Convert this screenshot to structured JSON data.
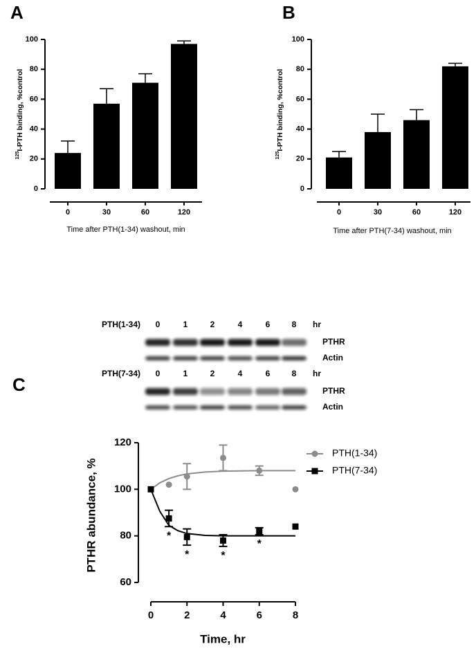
{
  "chart_data": [
    {
      "type": "bar",
      "panel": "A",
      "ylabel_sup": "125",
      "ylabel": "I-PTH binding, %control",
      "xlabel": "Time after PTH(1-34) washout, min",
      "categories": [
        "0",
        "30",
        "60",
        "120"
      ],
      "values": [
        24,
        57,
        71,
        97
      ],
      "errors": [
        8,
        10,
        6,
        2
      ],
      "color": "#000000",
      "ylim": [
        0,
        100
      ],
      "yticks": [
        0,
        20,
        40,
        60,
        80,
        100
      ]
    },
    {
      "type": "bar",
      "panel": "B",
      "ylabel_sup": "125",
      "ylabel": "I-PTH binding, %control",
      "xlabel": "Time after PTH(7-34) washout, min",
      "categories": [
        "0",
        "30",
        "60",
        "120"
      ],
      "values": [
        21,
        38,
        46,
        82
      ],
      "errors": [
        4,
        12,
        7,
        2
      ],
      "color": "#000000",
      "ylim": [
        0,
        100
      ],
      "yticks": [
        0,
        20,
        40,
        60,
        80,
        100
      ]
    },
    {
      "type": "line",
      "panel": "C",
      "ylabel": "PTHR abundance, %",
      "xlabel": "Time, hr",
      "x": [
        0,
        1,
        2,
        4,
        6,
        8
      ],
      "series": [
        {
          "name": "PTH(1-34)",
          "color": "#8c8c8c",
          "marker": "circle",
          "values": [
            100,
            102,
            105.5,
            113.5,
            108,
            100
          ],
          "errors": [
            0,
            0,
            5.5,
            5.5,
            2,
            0
          ],
          "fit": {
            "x": [
              0,
              0.5,
              1,
              1.5,
              2,
              3,
              4,
              5,
              6,
              7,
              8
            ],
            "values": [
              100,
              102.8,
              104.6,
              105.8,
              106.6,
              107.4,
              107.8,
              107.9,
              108,
              108,
              108
            ]
          }
        },
        {
          "name": "PTH(7-34)",
          "color": "#000000",
          "marker": "square",
          "values": [
            100,
            87.5,
            79.5,
            78,
            82,
            84
          ],
          "errors": [
            0,
            3.5,
            3.5,
            2.5,
            1.5,
            0
          ],
          "fit": {
            "x": [
              0,
              0.5,
              1,
              1.5,
              2,
              3,
              4,
              5,
              6,
              7,
              8
            ],
            "values": [
              100,
              90.5,
              84.5,
              82.2,
              81,
              80.2,
              80,
              80,
              80,
              80,
              80
            ]
          }
        }
      ],
      "significance": {
        "x": [
          1,
          2,
          4,
          6
        ],
        "label": "*"
      },
      "xlim": [
        0,
        8
      ],
      "xticks": [
        0,
        2,
        4,
        6,
        8
      ],
      "ylim": [
        60,
        120
      ],
      "yticks": [
        60,
        80,
        100,
        120
      ],
      "legend": "right"
    }
  ],
  "blots": [
    {
      "label": "PTH(1-34)",
      "lanes": [
        "0",
        "1",
        "2",
        "4",
        "6",
        "8"
      ],
      "unit": "hr",
      "rows": [
        "PTHR",
        "Actin"
      ]
    },
    {
      "label": "PTH(7-34)",
      "lanes": [
        "0",
        "1",
        "2",
        "4",
        "6",
        "8"
      ],
      "unit": "hr",
      "rows": [
        "PTHR",
        "Actin"
      ]
    }
  ]
}
